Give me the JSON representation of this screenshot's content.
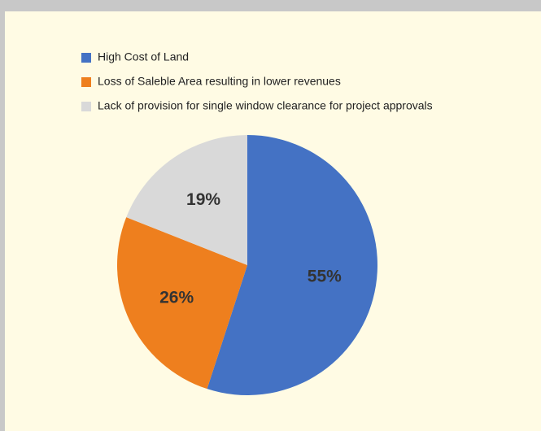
{
  "chart_data": {
    "type": "pie",
    "categories": [
      "High Cost of Land",
      "Loss of Saleble Area resulting in lower revenues",
      "Lack of provision for single window clearance for project approvals"
    ],
    "values": [
      55,
      26,
      19
    ],
    "value_labels": [
      "55%",
      "26%",
      "19%"
    ],
    "colors": [
      "#4472c4",
      "#ee7f1e",
      "#d9d9d9"
    ]
  }
}
